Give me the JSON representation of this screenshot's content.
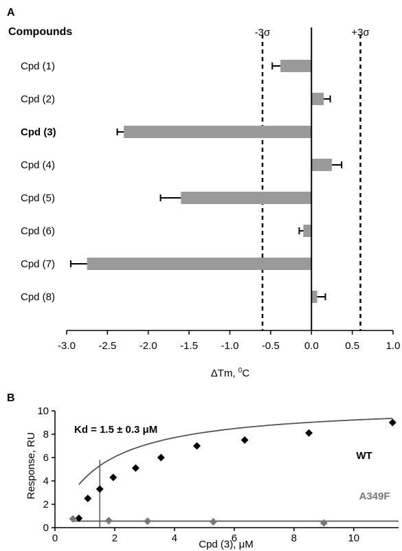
{
  "chart_data": [
    {
      "panel_label": "A",
      "type": "bar",
      "orientation": "horizontal",
      "category_header": "Compounds",
      "categories": [
        "Cpd (1)",
        "Cpd (2)",
        "Cpd (3)",
        "Cpd (4)",
        "Cpd (5)",
        "Cpd (6)",
        "Cpd (7)",
        "Cpd (8)"
      ],
      "highlighted_category": "Cpd (3)",
      "values": [
        -0.38,
        0.15,
        -2.3,
        0.25,
        -1.6,
        -0.1,
        -2.75,
        0.07
      ],
      "errors": [
        0.1,
        0.08,
        0.08,
        0.12,
        0.25,
        0.05,
        0.2,
        0.1
      ],
      "bar_color": "#9a9a9a",
      "xlabel": "ΔTm, ",
      "xlabel_sup": "0",
      "xlabel_unit": "C",
      "xlim": [
        -3.0,
        1.0
      ],
      "xticks": [
        "-3.0",
        "-2.5",
        "-2.0",
        "-1.5",
        "-1.0",
        "-0.5",
        "0.0",
        "0.5",
        "1.0"
      ],
      "thresholds": [
        {
          "label": "-3σ",
          "value": -0.6
        },
        {
          "label": "+3σ",
          "value": 0.6
        }
      ]
    },
    {
      "panel_label": "B",
      "type": "scatter",
      "xlabel": "Cpd (3), μM",
      "ylabel": "Response, RU",
      "xlim": [
        0,
        11.5
      ],
      "ylim": [
        0,
        10
      ],
      "xticks": [
        "0",
        "2",
        "4",
        "6",
        "8",
        "10"
      ],
      "yticks": [
        "0",
        "2",
        "4",
        "6",
        "8",
        "10"
      ],
      "annotation": "Kd = 1.5 ± 0.3 μM",
      "kd_line_x": 1.5,
      "series": [
        {
          "name": "WT",
          "color": "#000000",
          "fit_color": "#555555",
          "bmax": 10.6,
          "kd": 1.5,
          "x": [
            0.8,
            1.1,
            1.5,
            1.95,
            2.7,
            3.55,
            4.75,
            6.35,
            8.5,
            11.3
          ],
          "y": [
            0.8,
            2.5,
            3.3,
            4.3,
            5.1,
            6.0,
            7.0,
            7.5,
            8.1,
            9.0
          ]
        },
        {
          "name": "A349F",
          "color": "#777777",
          "x": [
            0.6,
            1.8,
            3.1,
            5.3,
            9.0
          ],
          "y": [
            0.75,
            0.6,
            0.55,
            0.5,
            0.4
          ]
        }
      ]
    }
  ]
}
